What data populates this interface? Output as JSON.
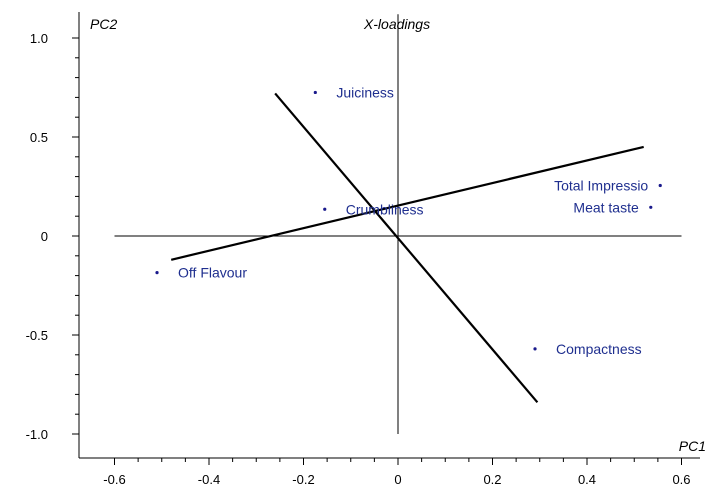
{
  "chart_data": {
    "type": "scatter",
    "title": "X-loadings",
    "xlabel": "PC1",
    "ylabel": "PC2",
    "xlim": [
      -0.7,
      0.62
    ],
    "ylim": [
      -1.1,
      1.12
    ],
    "x_ticks": [
      -0.6,
      -0.4,
      -0.2,
      0,
      0.2,
      0.4,
      0.6
    ],
    "x_tick_labels": [
      "-0.6",
      "-0.4",
      "-0.2",
      "0",
      "0.2",
      "0.4",
      "0.6"
    ],
    "y_ticks": [
      -1.0,
      -0.5,
      0,
      0.5,
      1.0
    ],
    "y_tick_labels": [
      "-1.0",
      "-0.5",
      "0",
      "0.5",
      "1.0"
    ],
    "grid": false,
    "point_color": "#1a1a8c",
    "label_color": "#1f2f8f",
    "points": [
      {
        "label": "Juiciness",
        "x": -0.175,
        "y": 0.725
      },
      {
        "label": "Crumbliness",
        "x": -0.155,
        "y": 0.135
      },
      {
        "label": "Total Impressio",
        "x": 0.555,
        "y": 0.255,
        "label_side": "left"
      },
      {
        "label": "Meat taste",
        "x": 0.535,
        "y": 0.145,
        "label_side": "left"
      },
      {
        "label": "Off Flavour",
        "x": -0.51,
        "y": -0.185
      },
      {
        "label": "Compactness",
        "x": 0.29,
        "y": -0.57
      }
    ],
    "reference_lines": [
      {
        "x": [
          -0.6,
          0.6
        ],
        "y": [
          0,
          0
        ]
      },
      {
        "x": [
          0,
          0
        ],
        "y": [
          -1.0,
          1.12
        ]
      }
    ],
    "overlay_lines": [
      {
        "x": [
          -0.48,
          0.52
        ],
        "y": [
          -0.12,
          0.45
        ]
      },
      {
        "x": [
          -0.26,
          0.295
        ],
        "y": [
          0.72,
          -0.84
        ]
      }
    ]
  }
}
